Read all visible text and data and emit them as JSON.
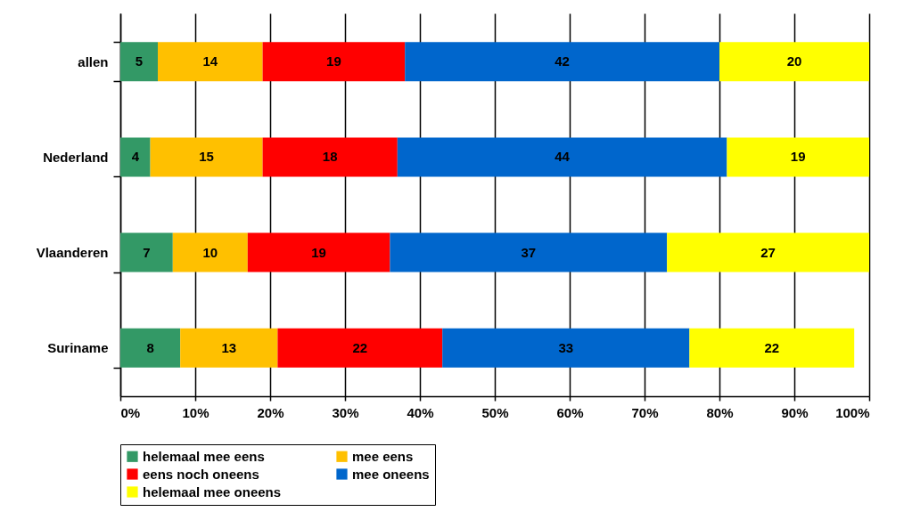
{
  "chart_data": {
    "type": "bar",
    "orientation": "horizontal",
    "stacked": true,
    "categories": [
      "allen",
      "Nederland",
      "Vlaanderen",
      "Suriname"
    ],
    "series": [
      {
        "name": "helemaal mee eens",
        "color": "#339966",
        "values": [
          5,
          4,
          7,
          8
        ]
      },
      {
        "name": "mee eens",
        "color": "#ffc000",
        "values": [
          14,
          15,
          10,
          13
        ]
      },
      {
        "name": "eens noch oneens",
        "color": "#ff0000",
        "values": [
          19,
          18,
          19,
          22
        ]
      },
      {
        "name": "mee oneens",
        "color": "#0066cc",
        "values": [
          42,
          44,
          37,
          33
        ]
      },
      {
        "name": "helemaal mee oneens",
        "color": "#ffff00",
        "values": [
          20,
          19,
          27,
          22
        ]
      }
    ],
    "data_labels": true,
    "xlim": [
      0,
      100
    ],
    "xticks": [
      {
        "value": 0,
        "label": "0%"
      },
      {
        "value": 10,
        "label": "10%"
      },
      {
        "value": 20,
        "label": "20%"
      },
      {
        "value": 30,
        "label": "30%"
      },
      {
        "value": 40,
        "label": "40%"
      },
      {
        "value": 50,
        "label": "50%"
      },
      {
        "value": 60,
        "label": "60%"
      },
      {
        "value": 70,
        "label": "70%"
      },
      {
        "value": 80,
        "label": "80%"
      },
      {
        "value": 90,
        "label": "90%"
      },
      {
        "value": 100,
        "label": "100%"
      }
    ],
    "grid": "x",
    "legend": "bottom"
  }
}
